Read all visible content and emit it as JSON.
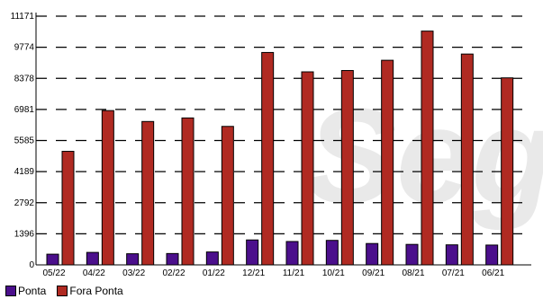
{
  "chart_data": {
    "type": "bar",
    "watermark": "Segur",
    "categories": [
      "05/22",
      "04/22",
      "03/22",
      "02/22",
      "01/22",
      "12/21",
      "11/21",
      "10/21",
      "09/21",
      "08/21",
      "07/21",
      "06/21"
    ],
    "yticks": [
      "0",
      "1396",
      "2792",
      "4189",
      "5585",
      "6981",
      "8378",
      "9774",
      "11171"
    ],
    "ylim": [
      0,
      11171
    ],
    "grid": true,
    "legend_position": "bottom-left",
    "series": [
      {
        "name": "Ponta",
        "color": "#4b0f8c",
        "values": [
          480,
          560,
          500,
          510,
          580,
          1120,
          1050,
          1100,
          960,
          920,
          900,
          890
        ]
      },
      {
        "name": "Fora Ponta",
        "color": "#b02a22",
        "values": [
          5100,
          6930,
          6440,
          6600,
          6220,
          9540,
          8670,
          8730,
          9190,
          10500,
          9470,
          8400
        ]
      }
    ]
  }
}
